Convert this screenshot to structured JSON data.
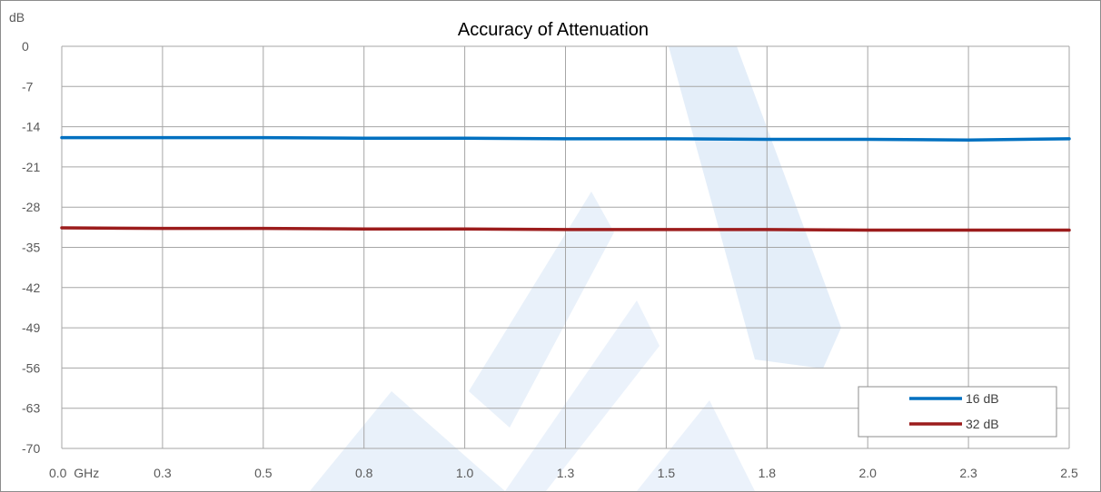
{
  "chart_data": {
    "type": "line",
    "title": "Accuracy of Attenuation",
    "ylabel": "dB",
    "xlabel": "",
    "x_tick_labels": [
      "0.0  GHz",
      "0.3",
      "0.5",
      "0.8",
      "1.0",
      "1.3",
      "1.5",
      "1.8",
      "2.0",
      "2.3",
      "2.5"
    ],
    "y_tick_labels": [
      "0",
      "-7",
      "-14",
      "-21",
      "-28",
      "-35",
      "-42",
      "-49",
      "-56",
      "-63",
      "-70"
    ],
    "xlim": [
      0,
      2.5
    ],
    "ylim": [
      -70,
      0
    ],
    "grid": true,
    "legend_position": "bottom-right",
    "x": [
      0.0,
      0.25,
      0.5,
      0.75,
      1.0,
      1.25,
      1.5,
      1.75,
      2.0,
      2.25,
      2.5
    ],
    "series": [
      {
        "name": "16 dB",
        "color": "#0070c0",
        "values": [
          -15.9,
          -15.9,
          -15.9,
          -16.0,
          -16.0,
          -16.1,
          -16.1,
          -16.2,
          -16.2,
          -16.3,
          -16.1
        ]
      },
      {
        "name": "32 dB",
        "color": "#9c1c1c",
        "values": [
          -31.6,
          -31.7,
          -31.7,
          -31.8,
          -31.8,
          -31.9,
          -31.9,
          -31.9,
          -32.0,
          -32.0,
          -32.0
        ]
      }
    ],
    "watermark_color": "#dbe8f7"
  }
}
